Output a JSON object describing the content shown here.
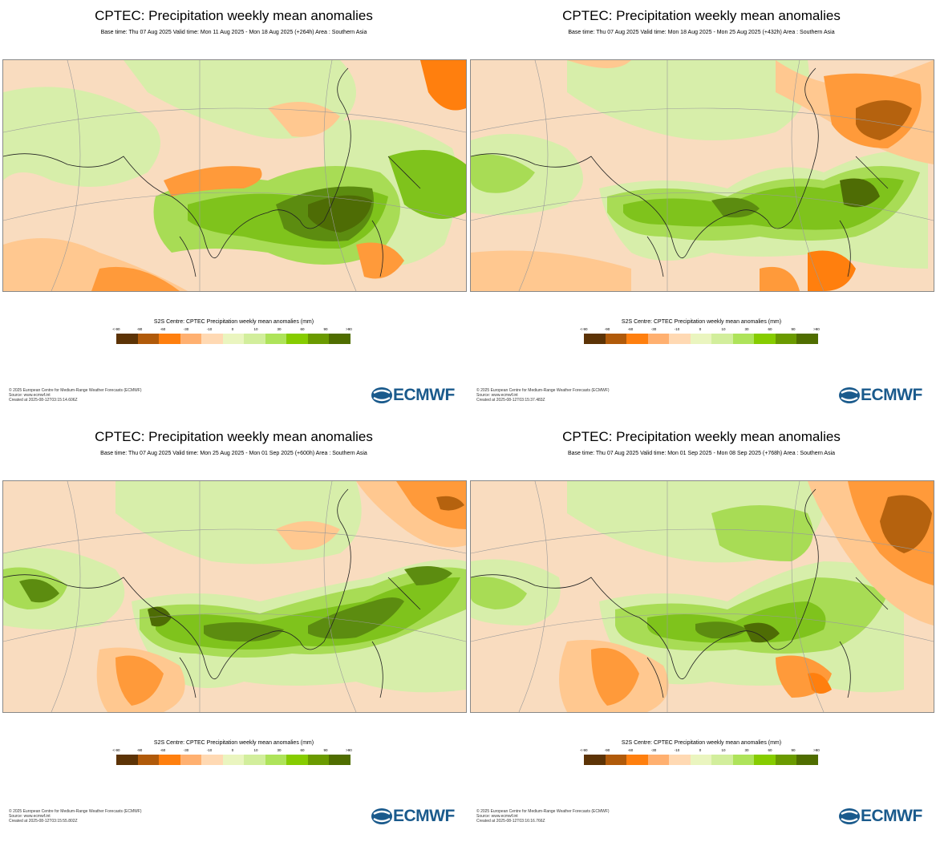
{
  "panels": [
    {
      "title": "CPTEC: Precipitation weekly mean anomalies",
      "subtitle": "Base time: Thu 07 Aug 2025 Valid time: Mon 11 Aug 2025 - Mon 18 Aug 2025 (+264h) Area : Southern Asia",
      "legend_title": "S2S Centre: CPTEC Precipitation weekly mean anomalies (mm)",
      "copyright": [
        "© 2025 European Centre for Medium-Range Weather Forecasts (ECMWF)",
        "Source: www.ecmwf.int",
        "Created at 2025-08-12T03:15:14.606Z"
      ],
      "logo": "ECMWF"
    },
    {
      "title": "CPTEC: Precipitation weekly mean anomalies",
      "subtitle": "Base time: Thu 07 Aug 2025 Valid time: Mon 18 Aug 2025 - Mon 25 Aug 2025 (+432h) Area : Southern Asia",
      "legend_title": "S2S Centre: CPTEC Precipitation weekly mean anomalies (mm)",
      "copyright": [
        "© 2025 European Centre for Medium-Range Weather Forecasts (ECMWF)",
        "Source: www.ecmwf.int",
        "Created at 2025-08-12T03:15:37.483Z"
      ],
      "logo": "ECMWF"
    },
    {
      "title": "CPTEC: Precipitation weekly mean anomalies",
      "subtitle": "Base time: Thu 07 Aug 2025 Valid time: Mon 25 Aug 2025 - Mon 01 Sep 2025 (+600h) Area : Southern Asia",
      "legend_title": "S2S Centre: CPTEC Precipitation weekly mean anomalies (mm)",
      "copyright": [
        "© 2025 European Centre for Medium-Range Weather Forecasts (ECMWF)",
        "Source: www.ecmwf.int",
        "Created at 2025-08-12T03:15:55.802Z"
      ],
      "logo": "ECMWF"
    },
    {
      "title": "CPTEC: Precipitation weekly mean anomalies",
      "subtitle": "Base time: Thu 07 Aug 2025 Valid time: Mon 01 Sep 2025 - Mon 08 Sep 2025 (+768h) Area : Southern Asia",
      "legend_title": "S2S Centre: CPTEC Precipitation weekly mean anomalies (mm)",
      "copyright": [
        "© 2025 European Centre for Medium-Range Weather Forecasts (ECMWF)",
        "Source: www.ecmwf.int",
        "Created at 2025-08-12T03:16:16.766Z"
      ],
      "logo": "ECMWF"
    }
  ],
  "legend": {
    "ticks": [
      "<-90",
      "-90",
      "-60",
      "-30",
      "-10",
      "0",
      "10",
      "30",
      "60",
      "90",
      ">90"
    ],
    "colors": [
      "#5c3306",
      "#b05a0a",
      "#ff7f0e",
      "#ffb070",
      "#ffd9b3",
      "#eaf5bf",
      "#d2ee9c",
      "#aee35a",
      "#86cc00",
      "#6a9a00",
      "#4f6d00"
    ]
  },
  "map_colors": {
    "land_base": "#f5d9b8",
    "light_green": "#d7eeaa",
    "green": "#a8dc55",
    "mid_green": "#7fc31c",
    "dark_green": "#5c8c10",
    "darkest_green": "#4e6c05",
    "light_orange": "#ffc890",
    "orange": "#ff9a3a",
    "dark_orange": "#ff7f0e",
    "brown": "#b5620e"
  },
  "map_icons": [
    "ecmwf-logo-icon",
    "coastline-map-icon"
  ]
}
